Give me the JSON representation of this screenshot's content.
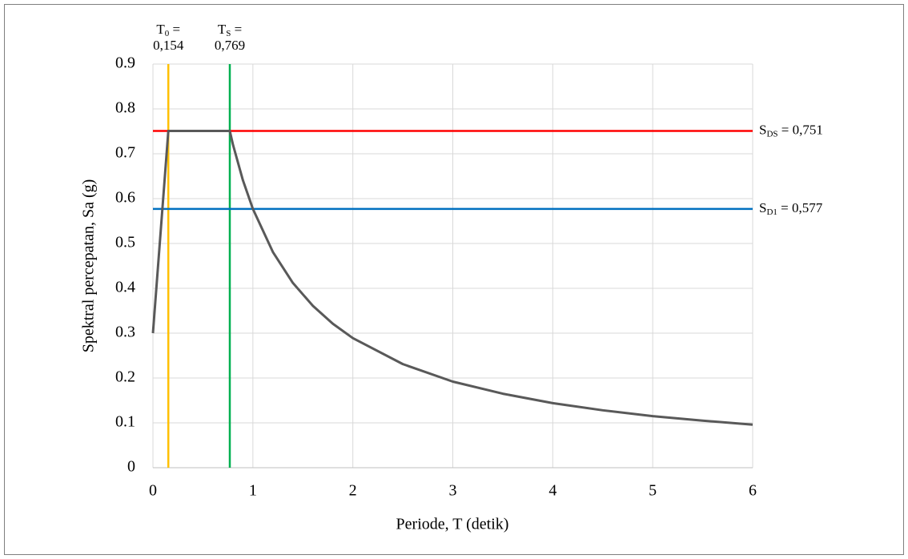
{
  "chart_data": {
    "type": "line",
    "x_label": "Periode, T (detik)",
    "y_label": "Spektral percepatan, Sa (g)",
    "x": [
      0,
      0.154,
      0.769,
      0.8,
      0.9,
      1.0,
      1.2,
      1.4,
      1.6,
      1.8,
      2.0,
      2.5,
      3.0,
      3.5,
      4.0,
      4.5,
      5.0,
      5.5,
      6.0
    ],
    "series": [
      {
        "color": "#595959",
        "values": [
          0.3,
          0.751,
          0.751,
          0.721,
          0.641,
          0.577,
          0.481,
          0.412,
          0.361,
          0.321,
          0.289,
          0.231,
          0.192,
          0.165,
          0.144,
          0.128,
          0.115,
          0.105,
          0.096
        ]
      }
    ],
    "reference_lines": [
      {
        "axis": "x",
        "value": 0.154,
        "color": "#ffc000",
        "symbol": "T",
        "subscript": "0",
        "equals": " =",
        "label": "0,154"
      },
      {
        "axis": "x",
        "value": 0.769,
        "color": "#00b050",
        "symbol": "T",
        "subscript": "S",
        "equals": " =",
        "label": "0,769"
      },
      {
        "axis": "y",
        "value": 0.751,
        "color": "#ff0000",
        "symbol": "S",
        "subscript": "DS",
        "equals": " = ",
        "label": "0,751"
      },
      {
        "axis": "y",
        "value": 0.577,
        "color": "#0070c0",
        "symbol": "S",
        "subscript": "D1",
        "equals": " = ",
        "label": "0,577"
      }
    ],
    "xlim": [
      0,
      6
    ],
    "xticks": [
      0,
      1,
      2,
      3,
      4,
      5,
      6
    ],
    "ylim": [
      0,
      0.9
    ],
    "yticks": [
      0,
      0.1,
      0.2,
      0.3,
      0.4,
      0.5,
      0.6,
      0.7,
      0.8,
      0.9
    ],
    "grid": true
  }
}
